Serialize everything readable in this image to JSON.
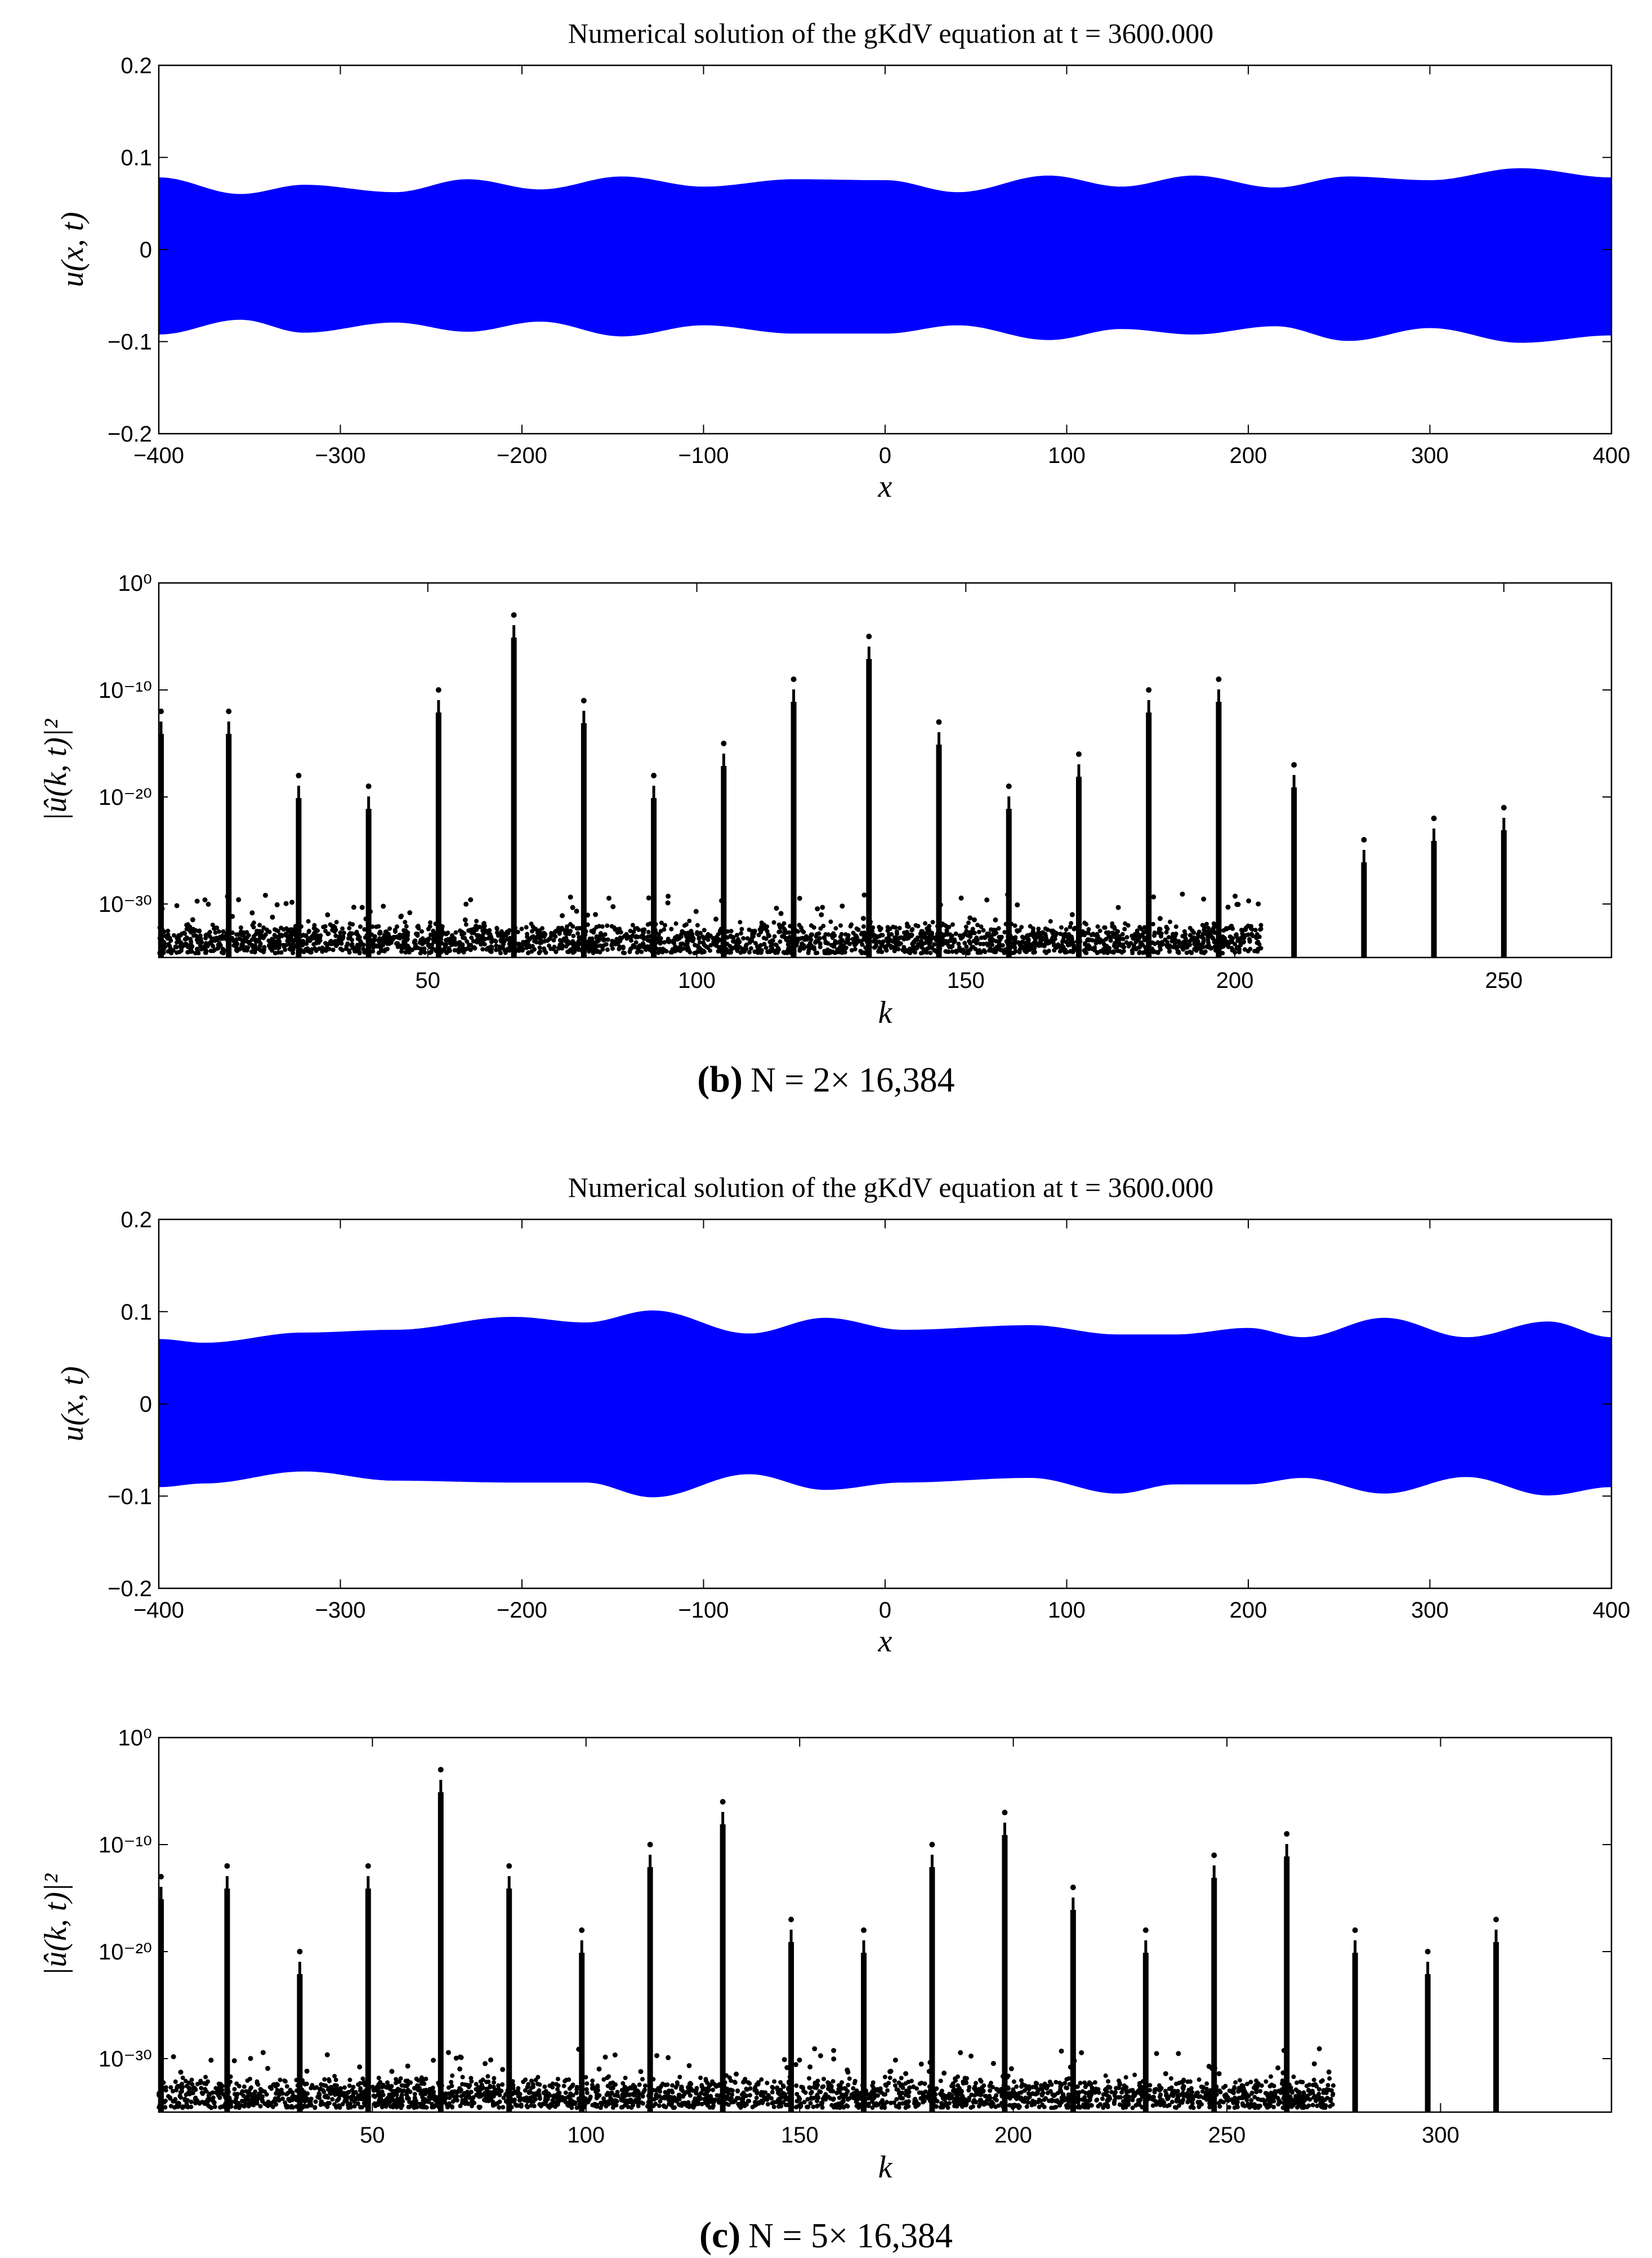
{
  "panels": [
    {
      "caption_label": "(b)",
      "caption_text": "N = 2× 16,384",
      "charts": [
        {
          "type": "area",
          "title": "Numerical solution of the gKdV equation at t = 3600.000",
          "xlabel": "x",
          "ylabel": "u(x, t)",
          "xlim": [
            -400,
            400
          ],
          "ylim": [
            -0.2,
            0.2
          ],
          "xticks": [
            -400,
            -300,
            -200,
            -100,
            0,
            100,
            200,
            300,
            400
          ],
          "yticks": [
            -0.2,
            -0.1,
            0,
            0.1,
            0.2
          ],
          "ytick_labels": [
            "−0.2",
            "−0.1",
            "0",
            "0.1",
            "0.2"
          ],
          "xtick_labels": [
            "−400",
            "−300",
            "−200",
            "−100",
            "0",
            "100",
            "200",
            "300",
            "400"
          ],
          "color": "#0000ff",
          "x": [
            -400,
            -355,
            -320,
            -270,
            -230,
            -190,
            -145,
            -100,
            -50,
            0,
            40,
            90,
            130,
            170,
            215,
            255,
            300,
            350,
            400
          ],
          "upper": [
            0.078,
            0.06,
            0.07,
            0.062,
            0.076,
            0.065,
            0.079,
            0.068,
            0.076,
            0.075,
            0.062,
            0.08,
            0.068,
            0.08,
            0.067,
            0.079,
            0.075,
            0.088,
            0.078
          ],
          "lower": [
            -0.092,
            -0.076,
            -0.09,
            -0.079,
            -0.089,
            -0.078,
            -0.094,
            -0.082,
            -0.091,
            -0.091,
            -0.082,
            -0.098,
            -0.086,
            -0.092,
            -0.083,
            -0.099,
            -0.085,
            -0.101,
            -0.093
          ]
        },
        {
          "type": "scatter",
          "xlabel": "k",
          "ylabel": "|û(k, t)|²",
          "yscale": "log",
          "xlim": [
            0,
            270
          ],
          "ylim_exp": [
            -35,
            0
          ],
          "xticks": [
            50,
            100,
            150,
            200,
            250
          ],
          "yticks_exp": [
            0,
            -10,
            -20,
            -30
          ],
          "ytick_labels": [
            "10⁰",
            "10⁻¹⁰",
            "10⁻²⁰",
            "10⁻³⁰"
          ],
          "color": "#000000",
          "noise_floor_exp": -31.5,
          "noise_end_k": 205,
          "peaks": [
            {
              "k": 0,
              "max_exp": -12
            },
            {
              "k": 13,
              "max_exp": -12
            },
            {
              "k": 26,
              "max_exp": -18
            },
            {
              "k": 39,
              "max_exp": -19
            },
            {
              "k": 52,
              "max_exp": -10
            },
            {
              "k": 66,
              "max_exp": -3
            },
            {
              "k": 79,
              "max_exp": -11
            },
            {
              "k": 92,
              "max_exp": -18
            },
            {
              "k": 105,
              "max_exp": -15
            },
            {
              "k": 118,
              "max_exp": -9
            },
            {
              "k": 132,
              "max_exp": -5
            },
            {
              "k": 145,
              "max_exp": -13
            },
            {
              "k": 158,
              "max_exp": -19
            },
            {
              "k": 171,
              "max_exp": -16
            },
            {
              "k": 184,
              "max_exp": -10
            },
            {
              "k": 197,
              "max_exp": -9
            },
            {
              "k": 211,
              "max_exp": -17
            },
            {
              "k": 224,
              "max_exp": -24
            },
            {
              "k": 237,
              "max_exp": -22
            },
            {
              "k": 250,
              "max_exp": -21
            }
          ]
        }
      ]
    },
    {
      "caption_label": "(c)",
      "caption_text": "N = 5× 16,384",
      "charts": [
        {
          "type": "area",
          "title": "Numerical solution of the gKdV equation at t = 3600.000",
          "xlabel": "x",
          "ylabel": "u(x, t)",
          "xlim": [
            -400,
            400
          ],
          "ylim": [
            -0.2,
            0.2
          ],
          "xticks": [
            -400,
            -300,
            -200,
            -100,
            0,
            100,
            200,
            300,
            400
          ],
          "yticks": [
            -0.2,
            -0.1,
            0,
            0.1,
            0.2
          ],
          "ytick_labels": [
            "−0.2",
            "−0.1",
            "0",
            "0.1",
            "0.2"
          ],
          "xtick_labels": [
            "−400",
            "−300",
            "−200",
            "−100",
            "0",
            "100",
            "200",
            "300",
            "400"
          ],
          "color": "#0000ff",
          "x": [
            -400,
            -375,
            -320,
            -270,
            -205,
            -165,
            -128,
            -75,
            -33,
            10,
            80,
            128,
            160,
            200,
            230,
            275,
            320,
            365,
            400
          ],
          "upper": [
            0.07,
            0.066,
            0.077,
            0.08,
            0.094,
            0.088,
            0.101,
            0.076,
            0.093,
            0.08,
            0.085,
            0.075,
            0.075,
            0.082,
            0.072,
            0.093,
            0.072,
            0.089,
            0.072
          ],
          "lower": [
            -0.09,
            -0.086,
            -0.073,
            -0.083,
            -0.085,
            -0.085,
            -0.101,
            -0.076,
            -0.093,
            -0.085,
            -0.08,
            -0.097,
            -0.087,
            -0.087,
            -0.08,
            -0.097,
            -0.079,
            -0.099,
            -0.09
          ]
        },
        {
          "type": "scatter",
          "xlabel": "k",
          "ylabel": "|û(k, t)|²",
          "yscale": "log",
          "xlim": [
            0,
            340
          ],
          "ylim_exp": [
            -35,
            0
          ],
          "xticks": [
            50,
            100,
            150,
            200,
            250,
            300
          ],
          "yticks_exp": [
            0,
            -10,
            -20,
            -30
          ],
          "ytick_labels": [
            "10⁰",
            "10⁻¹⁰",
            "10⁻²⁰",
            "10⁻³⁰"
          ],
          "color": "#000000",
          "noise_floor_exp": -31.5,
          "noise_end_k": 275,
          "peaks": [
            {
              "k": 0,
              "max_exp": -13
            },
            {
              "k": 16,
              "max_exp": -12
            },
            {
              "k": 33,
              "max_exp": -20
            },
            {
              "k": 49,
              "max_exp": -12
            },
            {
              "k": 66,
              "max_exp": -3
            },
            {
              "k": 82,
              "max_exp": -12
            },
            {
              "k": 99,
              "max_exp": -18
            },
            {
              "k": 115,
              "max_exp": -10
            },
            {
              "k": 132,
              "max_exp": -6
            },
            {
              "k": 148,
              "max_exp": -17
            },
            {
              "k": 165,
              "max_exp": -18
            },
            {
              "k": 181,
              "max_exp": -10
            },
            {
              "k": 198,
              "max_exp": -7
            },
            {
              "k": 214,
              "max_exp": -14
            },
            {
              "k": 231,
              "max_exp": -18
            },
            {
              "k": 247,
              "max_exp": -11
            },
            {
              "k": 264,
              "max_exp": -9
            },
            {
              "k": 280,
              "max_exp": -18
            },
            {
              "k": 297,
              "max_exp": -20
            },
            {
              "k": 313,
              "max_exp": -17
            }
          ]
        }
      ]
    }
  ]
}
